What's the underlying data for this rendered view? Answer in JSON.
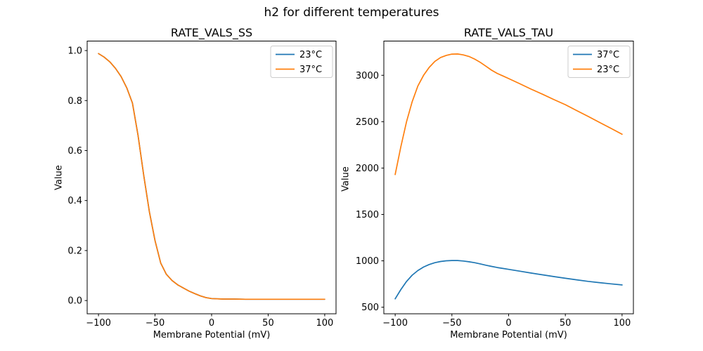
{
  "figure": {
    "suptitle": "h2 for different temperatures",
    "background_color": "#ffffff",
    "text_color": "#000000",
    "spine_color": "#000000",
    "legend_border_color": "#cccccc"
  },
  "chart_data": [
    {
      "type": "line",
      "title": "RATE_VALS_SS",
      "xlabel": "Membrane Potential (mV)",
      "ylabel": "Value",
      "grid": false,
      "legend_position": "upper right",
      "xlim": [
        -110,
        110
      ],
      "ylim": [
        -0.053,
        1.038
      ],
      "xticks": [
        {
          "v": -100,
          "label": "−100"
        },
        {
          "v": -50,
          "label": "−50"
        },
        {
          "v": 0,
          "label": "0"
        },
        {
          "v": 50,
          "label": "50"
        },
        {
          "v": 100,
          "label": "100"
        }
      ],
      "yticks": [
        {
          "v": 0.0,
          "label": "0.0"
        },
        {
          "v": 0.2,
          "label": "0.2"
        },
        {
          "v": 0.4,
          "label": "0.4"
        },
        {
          "v": 0.6,
          "label": "0.6"
        },
        {
          "v": 0.8,
          "label": "0.8"
        },
        {
          "v": 1.0,
          "label": "1.0"
        }
      ],
      "series": [
        {
          "name": "23°C",
          "color": "#1f77b4",
          "x": [
            -100,
            -95,
            -90,
            -85,
            -80,
            -75,
            -70,
            -65,
            -60,
            -55,
            -50,
            -45,
            -40,
            -35,
            -30,
            -25,
            -20,
            -15,
            -10,
            -5,
            0,
            10,
            20,
            30,
            40,
            50,
            60,
            70,
            80,
            90,
            100
          ],
          "y": [
            0.988,
            0.974,
            0.955,
            0.929,
            0.896,
            0.851,
            0.79,
            0.66,
            0.5,
            0.355,
            0.24,
            0.15,
            0.105,
            0.08,
            0.063,
            0.05,
            0.038,
            0.028,
            0.019,
            0.012,
            0.008,
            0.006,
            0.006,
            0.005,
            0.005,
            0.005,
            0.005,
            0.005,
            0.005,
            0.005,
            0.005
          ]
        },
        {
          "name": "37°C",
          "color": "#ff7f0e",
          "x": [
            -100,
            -95,
            -90,
            -85,
            -80,
            -75,
            -70,
            -65,
            -60,
            -55,
            -50,
            -45,
            -40,
            -35,
            -30,
            -25,
            -20,
            -15,
            -10,
            -5,
            0,
            10,
            20,
            30,
            40,
            50,
            60,
            70,
            80,
            90,
            100
          ],
          "y": [
            0.988,
            0.974,
            0.955,
            0.929,
            0.896,
            0.851,
            0.79,
            0.66,
            0.5,
            0.355,
            0.24,
            0.15,
            0.105,
            0.08,
            0.063,
            0.05,
            0.038,
            0.028,
            0.019,
            0.012,
            0.008,
            0.006,
            0.006,
            0.005,
            0.005,
            0.005,
            0.005,
            0.005,
            0.005,
            0.005,
            0.005
          ]
        }
      ]
    },
    {
      "type": "line",
      "title": "RATE_VALS_TAU",
      "xlabel": "Membrane Potential (mV)",
      "ylabel": "Value",
      "grid": false,
      "legend_position": "upper right",
      "xlim": [
        -110,
        110
      ],
      "ylim": [
        429,
        3369
      ],
      "xticks": [
        {
          "v": -100,
          "label": "−100"
        },
        {
          "v": -50,
          "label": "−50"
        },
        {
          "v": 0,
          "label": "0"
        },
        {
          "v": 50,
          "label": "50"
        },
        {
          "v": 100,
          "label": "100"
        }
      ],
      "yticks": [
        {
          "v": 500,
          "label": "500"
        },
        {
          "v": 1000,
          "label": "1000"
        },
        {
          "v": 1500,
          "label": "1500"
        },
        {
          "v": 2000,
          "label": "2000"
        },
        {
          "v": 2500,
          "label": "2500"
        },
        {
          "v": 3000,
          "label": "3000"
        }
      ],
      "series": [
        {
          "name": "37°C",
          "color": "#1f77b4",
          "x": [
            -100,
            -95,
            -90,
            -85,
            -80,
            -75,
            -70,
            -65,
            -60,
            -55,
            -50,
            -45,
            -40,
            -35,
            -30,
            -25,
            -20,
            -15,
            -10,
            -5,
            0,
            10,
            20,
            30,
            40,
            50,
            60,
            70,
            80,
            90,
            100
          ],
          "y": [
            590,
            690,
            778,
            845,
            895,
            933,
            960,
            980,
            993,
            1000,
            1003,
            1003,
            998,
            990,
            980,
            967,
            953,
            940,
            928,
            918,
            908,
            888,
            868,
            849,
            830,
            812,
            795,
            779,
            765,
            752,
            740
          ]
        },
        {
          "name": "23°C",
          "color": "#ff7f0e",
          "x": [
            -100,
            -95,
            -90,
            -85,
            -80,
            -75,
            -70,
            -65,
            -60,
            -55,
            -50,
            -45,
            -40,
            -35,
            -30,
            -25,
            -20,
            -15,
            -10,
            -5,
            0,
            10,
            20,
            30,
            40,
            50,
            60,
            70,
            80,
            90,
            100
          ],
          "y": [
            1930,
            2230,
            2500,
            2715,
            2885,
            3000,
            3085,
            3150,
            3192,
            3215,
            3228,
            3230,
            3220,
            3203,
            3175,
            3140,
            3098,
            3055,
            3020,
            2993,
            2965,
            2908,
            2850,
            2795,
            2738,
            2683,
            2620,
            2557,
            2493,
            2430,
            2365
          ]
        }
      ]
    }
  ]
}
